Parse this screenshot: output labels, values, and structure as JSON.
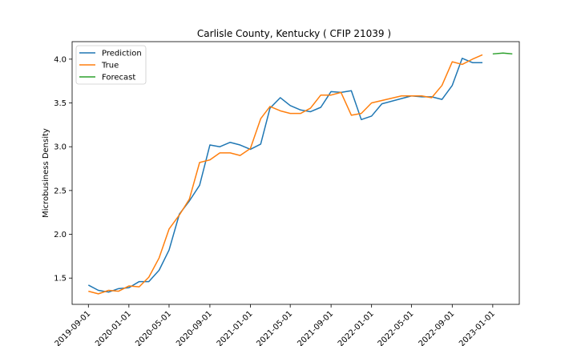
{
  "chart_data": {
    "type": "line",
    "title": "Carlisle County, Kentucky ( CFIP 21039 )",
    "xlabel": "",
    "ylabel": "Microbusiness Density",
    "ylim": [
      1.2,
      4.2
    ],
    "yticks": [
      1.5,
      2.0,
      2.5,
      3.0,
      3.5,
      4.0
    ],
    "ytick_labels": [
      "1.5",
      "2.0",
      "2.5",
      "3.0",
      "3.5",
      "4.0"
    ],
    "xticks": [
      "2019-09-01",
      "2020-01-01",
      "2020-05-01",
      "2020-09-01",
      "2021-01-01",
      "2021-05-01",
      "2021-09-01",
      "2022-01-01",
      "2022-05-01",
      "2022-09-01",
      "2023-01-01"
    ],
    "legend_position": "upper left",
    "grid": false,
    "series": [
      {
        "name": "Prediction",
        "color": "#1f77b4",
        "x": [
          "2019-09-01",
          "2019-10-01",
          "2019-11-01",
          "2019-12-01",
          "2020-01-01",
          "2020-02-01",
          "2020-03-01",
          "2020-04-01",
          "2020-05-01",
          "2020-06-01",
          "2020-07-01",
          "2020-08-01",
          "2020-09-01",
          "2020-10-01",
          "2020-11-01",
          "2020-12-01",
          "2021-01-01",
          "2021-02-01",
          "2021-03-01",
          "2021-04-01",
          "2021-05-01",
          "2021-06-01",
          "2021-07-01",
          "2021-08-01",
          "2021-09-01",
          "2021-10-01",
          "2021-11-01",
          "2021-12-01",
          "2022-01-01",
          "2022-02-01",
          "2022-05-01",
          "2022-06-01",
          "2022-07-01",
          "2022-08-01",
          "2022-09-01",
          "2022-10-01",
          "2022-11-01",
          "2022-12-01"
        ],
        "values": [
          1.42,
          1.36,
          1.34,
          1.38,
          1.39,
          1.46,
          1.46,
          1.59,
          1.82,
          2.23,
          2.38,
          2.56,
          3.02,
          3.0,
          3.05,
          3.02,
          2.97,
          3.03,
          3.44,
          3.56,
          3.47,
          3.42,
          3.4,
          3.45,
          3.63,
          3.62,
          3.64,
          3.31,
          3.35,
          3.49,
          3.58,
          3.57,
          3.57,
          3.54,
          3.7,
          4.01,
          3.96,
          3.96
        ]
      },
      {
        "name": "True",
        "color": "#ff7f0e",
        "x": [
          "2019-09-01",
          "2019-10-01",
          "2019-11-01",
          "2019-12-01",
          "2020-01-01",
          "2020-02-01",
          "2020-03-01",
          "2020-04-01",
          "2020-05-01",
          "2020-06-01",
          "2020-07-01",
          "2020-08-01",
          "2020-09-01",
          "2020-10-01",
          "2020-11-01",
          "2020-12-01",
          "2021-01-01",
          "2021-02-01",
          "2021-03-01",
          "2021-04-01",
          "2021-05-01",
          "2021-06-01",
          "2021-07-01",
          "2021-08-01",
          "2021-09-01",
          "2021-10-01",
          "2021-11-01",
          "2021-12-01",
          "2022-01-01",
          "2022-04-01",
          "2022-05-01",
          "2022-06-01",
          "2022-07-01",
          "2022-08-01",
          "2022-09-01",
          "2022-10-01",
          "2022-11-01",
          "2022-12-01"
        ],
        "values": [
          1.35,
          1.32,
          1.36,
          1.35,
          1.41,
          1.4,
          1.51,
          1.73,
          2.06,
          2.22,
          2.4,
          2.82,
          2.85,
          2.93,
          2.93,
          2.9,
          2.98,
          3.32,
          3.46,
          3.41,
          3.38,
          3.38,
          3.44,
          3.59,
          3.59,
          3.62,
          3.36,
          3.38,
          3.5,
          3.58,
          3.58,
          3.58,
          3.56,
          3.7,
          3.97,
          3.94,
          4.0,
          4.05
        ]
      },
      {
        "name": "Forecast",
        "color": "#2ca02c",
        "x": [
          "2023-01-01",
          "2023-02-01",
          "2023-03-01"
        ],
        "values": [
          4.06,
          4.07,
          4.06
        ]
      }
    ]
  }
}
